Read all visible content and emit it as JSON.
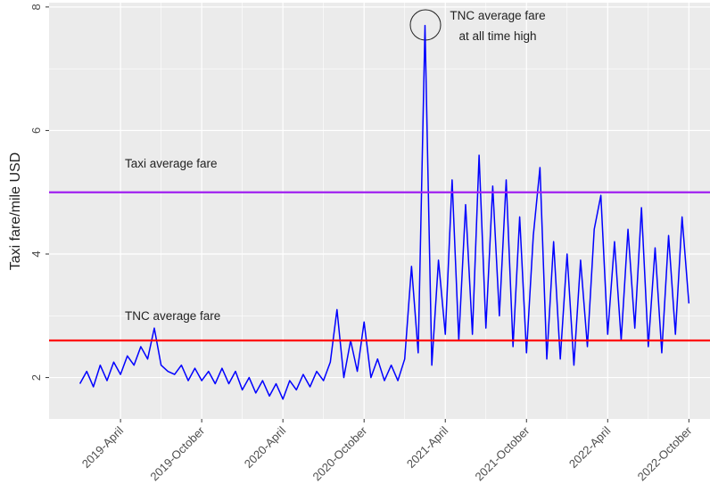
{
  "chart_data": {
    "type": "line",
    "y_label": "Taxi fare/mile USD",
    "annotations": [
      "Taxi average fare",
      "TNC average fare",
      "TNC average fare",
      "at all time high"
    ],
    "reference_lines": [
      {
        "value": 5.0,
        "color": "#a020f0"
      },
      {
        "value": 2.6,
        "color": "#ff0000"
      }
    ],
    "xlim": [
      2018.81,
      2022.88
    ],
    "xticks": [
      {
        "value": 2019.25,
        "label": "2019-April"
      },
      {
        "value": 2019.75,
        "label": "2019-October"
      },
      {
        "value": 2020.25,
        "label": "2020-April"
      },
      {
        "value": 2020.75,
        "label": "2020-October"
      },
      {
        "value": 2021.25,
        "label": "2021-April"
      },
      {
        "value": 2021.75,
        "label": "2021-October"
      },
      {
        "value": 2022.25,
        "label": "2022-April"
      },
      {
        "value": 2022.75,
        "label": "2022-October"
      }
    ],
    "ylim": [
      1.33,
      8.07
    ],
    "yticks": [
      2,
      4,
      6,
      8
    ],
    "grid": true,
    "x": [
      2019.0,
      2019.042,
      2019.083,
      2019.125,
      2019.167,
      2019.208,
      2019.25,
      2019.292,
      2019.333,
      2019.375,
      2019.417,
      2019.458,
      2019.5,
      2019.542,
      2019.583,
      2019.625,
      2019.667,
      2019.708,
      2019.75,
      2019.792,
      2019.833,
      2019.875,
      2019.917,
      2019.958,
      2020.0,
      2020.042,
      2020.083,
      2020.125,
      2020.167,
      2020.208,
      2020.25,
      2020.292,
      2020.333,
      2020.375,
      2020.417,
      2020.458,
      2020.5,
      2020.542,
      2020.583,
      2020.625,
      2020.667,
      2020.708,
      2020.75,
      2020.792,
      2020.833,
      2020.875,
      2020.917,
      2020.958,
      2021.0,
      2021.042,
      2021.083,
      2021.125,
      2021.167,
      2021.208,
      2021.25,
      2021.292,
      2021.333,
      2021.375,
      2021.417,
      2021.458,
      2021.5,
      2021.542,
      2021.583,
      2021.625,
      2021.667,
      2021.708,
      2021.75,
      2021.792,
      2021.833,
      2021.875,
      2021.917,
      2021.958,
      2022.0,
      2022.042,
      2022.083,
      2022.125,
      2022.167,
      2022.208,
      2022.25,
      2022.292,
      2022.333,
      2022.375,
      2022.417,
      2022.458,
      2022.5,
      2022.542,
      2022.583,
      2022.625,
      2022.667,
      2022.708,
      2022.75
    ],
    "series": [
      {
        "color": "#0000ff",
        "values": [
          1.9,
          2.1,
          1.85,
          2.2,
          1.95,
          2.25,
          2.05,
          2.35,
          2.2,
          2.5,
          2.3,
          2.8,
          2.2,
          2.1,
          2.05,
          2.2,
          1.95,
          2.15,
          1.95,
          2.1,
          1.9,
          2.15,
          1.9,
          2.1,
          1.8,
          2.0,
          1.75,
          1.95,
          1.7,
          1.9,
          1.65,
          1.95,
          1.8,
          2.05,
          1.85,
          2.1,
          1.95,
          2.25,
          3.1,
          2.0,
          2.6,
          2.1,
          2.9,
          2.0,
          2.3,
          1.95,
          2.2,
          1.95,
          2.3,
          3.8,
          2.4,
          7.7,
          2.2,
          3.9,
          2.7,
          5.2,
          2.6,
          4.8,
          2.7,
          5.6,
          2.8,
          5.1,
          3.0,
          5.2,
          2.5,
          4.6,
          2.4,
          4.3,
          5.4,
          2.3,
          4.2,
          2.3,
          4.0,
          2.2,
          3.9,
          2.5,
          4.4,
          4.95,
          2.7,
          4.2,
          2.6,
          4.4,
          2.8,
          4.75,
          2.5,
          4.1,
          2.4,
          4.3,
          2.7,
          4.6,
          3.2
        ]
      }
    ]
  }
}
